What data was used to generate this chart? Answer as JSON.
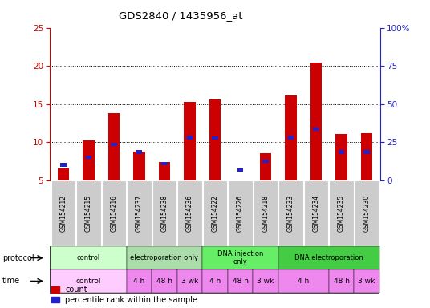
{
  "title": "GDS2840 / 1435956_at",
  "samples": [
    "GSM154212",
    "GSM154215",
    "GSM154216",
    "GSM154237",
    "GSM154238",
    "GSM154236",
    "GSM154222",
    "GSM154226",
    "GSM154218",
    "GSM154233",
    "GSM154234",
    "GSM154235",
    "GSM154230"
  ],
  "count_values": [
    6.5,
    10.2,
    13.8,
    8.8,
    7.4,
    15.3,
    15.6,
    5.0,
    8.5,
    16.1,
    20.4,
    11.1,
    11.2
  ],
  "percentile_values": [
    7.0,
    8.0,
    9.7,
    8.7,
    7.2,
    10.6,
    10.5,
    6.3,
    7.5,
    10.6,
    11.7,
    8.7,
    8.7
  ],
  "count_color": "#cc0000",
  "percentile_color": "#2222cc",
  "bar_bottom": 5.0,
  "ylim_left": [
    5,
    25
  ],
  "ylim_right": [
    0,
    100
  ],
  "yticks_left": [
    5,
    10,
    15,
    20,
    25
  ],
  "yticks_right": [
    0,
    25,
    50,
    75,
    100
  ],
  "ytick_labels_right": [
    "0",
    "25",
    "50",
    "75",
    "100%"
  ],
  "dotted_lines": [
    10,
    15,
    20
  ],
  "protocol_data": [
    {
      "label": "control",
      "start": 0,
      "end": 3,
      "color": "#ccffcc"
    },
    {
      "label": "electroporation only",
      "start": 3,
      "end": 6,
      "color": "#aaddaa"
    },
    {
      "label": "DNA injection\nonly",
      "start": 6,
      "end": 9,
      "color": "#66ee66"
    },
    {
      "label": "DNA electroporation",
      "start": 9,
      "end": 13,
      "color": "#44cc44"
    }
  ],
  "time_data": [
    {
      "label": "control",
      "start": 0,
      "end": 3,
      "color": "#ffccff"
    },
    {
      "label": "4 h",
      "start": 3,
      "end": 4,
      "color": "#ee88ee"
    },
    {
      "label": "48 h",
      "start": 4,
      "end": 5,
      "color": "#ee88ee"
    },
    {
      "label": "3 wk",
      "start": 5,
      "end": 6,
      "color": "#ee88ee"
    },
    {
      "label": "4 h",
      "start": 6,
      "end": 7,
      "color": "#ee88ee"
    },
    {
      "label": "48 h",
      "start": 7,
      "end": 8,
      "color": "#ee88ee"
    },
    {
      "label": "3 wk",
      "start": 8,
      "end": 9,
      "color": "#ee88ee"
    },
    {
      "label": "4 h",
      "start": 9,
      "end": 11,
      "color": "#ee88ee"
    },
    {
      "label": "48 h",
      "start": 11,
      "end": 12,
      "color": "#ee88ee"
    },
    {
      "label": "3 wk",
      "start": 12,
      "end": 13,
      "color": "#ee88ee"
    }
  ],
  "legend_count_label": "count",
  "legend_percentile_label": "percentile rank within the sample",
  "protocol_label": "protocol",
  "time_label": "time",
  "bar_width": 0.45,
  "bg_color": "#ffffff",
  "sample_bg_color": "#cccccc"
}
